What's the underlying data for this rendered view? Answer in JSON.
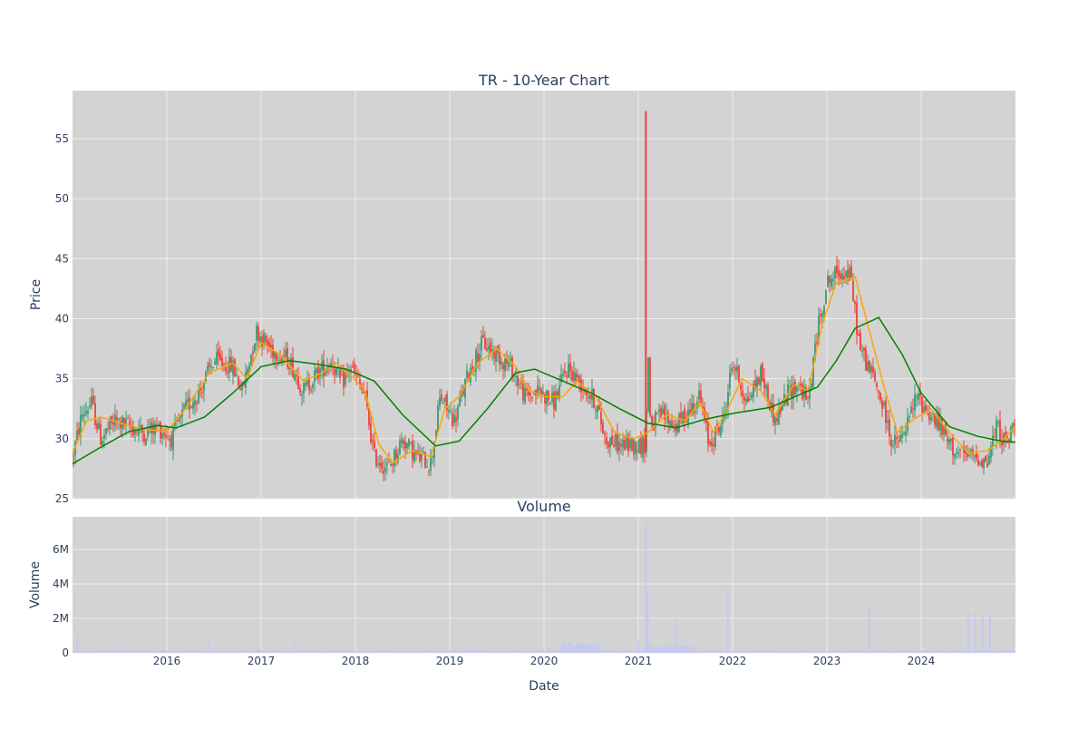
{
  "colors": {
    "panel_bg": "#d3d3d3",
    "grid": "#eeeeee",
    "text": "#2a3f5f",
    "up": "#3d9970",
    "down": "#ef4136",
    "ma_short": "#ffa500",
    "ma_long": "#008000",
    "volume": "#c5c8f0"
  },
  "chart_data": [
    {
      "type": "candlestick",
      "title": "TR - 10-Year Chart",
      "ylabel": "Price",
      "ylim": [
        25,
        59
      ],
      "y_ticks": [
        25,
        30,
        35,
        40,
        45,
        50,
        55
      ],
      "xlim": [
        2015.0,
        2025.0
      ],
      "x_ticks": [
        "2016",
        "2017",
        "2018",
        "2019",
        "2020",
        "2021",
        "2022",
        "2023",
        "2024"
      ],
      "grid": true,
      "legend": "none",
      "price_path": [
        [
          2015.0,
          28.5
        ],
        [
          2015.1,
          32.0
        ],
        [
          2015.2,
          33.0
        ],
        [
          2015.3,
          30.0
        ],
        [
          2015.45,
          31.5
        ],
        [
          2015.6,
          31.0
        ],
        [
          2015.75,
          30.5
        ],
        [
          2015.9,
          31.0
        ],
        [
          2016.05,
          30.0
        ],
        [
          2016.2,
          32.5
        ],
        [
          2016.35,
          34.0
        ],
        [
          2016.5,
          36.5
        ],
        [
          2016.7,
          36.0
        ],
        [
          2016.8,
          34.0
        ],
        [
          2016.95,
          39.0
        ],
        [
          2017.1,
          37.5
        ],
        [
          2017.3,
          36.5
        ],
        [
          2017.45,
          34.0
        ],
        [
          2017.6,
          35.5
        ],
        [
          2017.75,
          36.5
        ],
        [
          2017.85,
          34.5
        ],
        [
          2017.95,
          36.0
        ],
        [
          2018.1,
          33.5
        ],
        [
          2018.2,
          28.5
        ],
        [
          2018.35,
          27.5
        ],
        [
          2018.5,
          30.0
        ],
        [
          2018.65,
          28.5
        ],
        [
          2018.8,
          28.0
        ],
        [
          2018.9,
          33.5
        ],
        [
          2019.05,
          31.5
        ],
        [
          2019.2,
          35.5
        ],
        [
          2019.35,
          38.0
        ],
        [
          2019.5,
          37.0
        ],
        [
          2019.65,
          36.0
        ],
        [
          2019.8,
          33.5
        ],
        [
          2019.95,
          34.0
        ],
        [
          2020.1,
          33.0
        ],
        [
          2020.25,
          36.0
        ],
        [
          2020.4,
          34.5
        ],
        [
          2020.55,
          33.0
        ],
        [
          2020.65,
          30.0
        ],
        [
          2020.8,
          29.5
        ],
        [
          2020.95,
          29.5
        ],
        [
          2021.08,
          29.5
        ],
        [
          2021.1,
          38.0
        ],
        [
          2021.13,
          31.0
        ],
        [
          2021.25,
          32.0
        ],
        [
          2021.4,
          31.0
        ],
        [
          2021.55,
          32.5
        ],
        [
          2021.65,
          33.5
        ],
        [
          2021.75,
          29.5
        ],
        [
          2021.9,
          31.5
        ],
        [
          2022.0,
          36.5
        ],
        [
          2022.15,
          33.0
        ],
        [
          2022.3,
          35.5
        ],
        [
          2022.45,
          31.5
        ],
        [
          2022.6,
          34.0
        ],
        [
          2022.7,
          34.5
        ],
        [
          2022.8,
          33.0
        ],
        [
          2022.9,
          39.0
        ],
        [
          2023.0,
          43.0
        ],
        [
          2023.15,
          44.0
        ],
        [
          2023.25,
          43.5
        ],
        [
          2023.35,
          37.5
        ],
        [
          2023.5,
          35.0
        ],
        [
          2023.6,
          32.5
        ],
        [
          2023.7,
          29.5
        ],
        [
          2023.8,
          30.0
        ],
        [
          2023.95,
          33.5
        ],
        [
          2024.05,
          32.5
        ],
        [
          2024.2,
          31.0
        ],
        [
          2024.3,
          29.5
        ],
        [
          2024.45,
          28.5
        ],
        [
          2024.6,
          28.5
        ],
        [
          2024.7,
          28.0
        ],
        [
          2024.8,
          31.0
        ],
        [
          2024.9,
          29.5
        ],
        [
          2025.0,
          31.5
        ]
      ],
      "spike": {
        "x": 2021.08,
        "low": 29.0,
        "high": 57.3
      },
      "ma_short": [
        [
          2015.0,
          28.8
        ],
        [
          2015.15,
          31.5
        ],
        [
          2015.3,
          31.8
        ],
        [
          2015.5,
          31.3
        ],
        [
          2015.75,
          30.8
        ],
        [
          2016.0,
          30.6
        ],
        [
          2016.2,
          32.5
        ],
        [
          2016.45,
          35.5
        ],
        [
          2016.7,
          36.3
        ],
        [
          2016.85,
          35.0
        ],
        [
          2017.0,
          38.0
        ],
        [
          2017.2,
          37.0
        ],
        [
          2017.45,
          34.8
        ],
        [
          2017.65,
          35.5
        ],
        [
          2017.8,
          36.3
        ],
        [
          2017.95,
          35.3
        ],
        [
          2018.1,
          34.0
        ],
        [
          2018.25,
          29.5
        ],
        [
          2018.4,
          28.0
        ],
        [
          2018.6,
          29.0
        ],
        [
          2018.8,
          28.5
        ],
        [
          2018.95,
          32.5
        ],
        [
          2019.1,
          33.5
        ],
        [
          2019.3,
          36.3
        ],
        [
          2019.5,
          37.5
        ],
        [
          2019.7,
          36.0
        ],
        [
          2019.85,
          34.0
        ],
        [
          2020.0,
          33.5
        ],
        [
          2020.2,
          33.5
        ],
        [
          2020.35,
          34.8
        ],
        [
          2020.55,
          33.5
        ],
        [
          2020.75,
          30.5
        ],
        [
          2020.95,
          30.0
        ],
        [
          2021.1,
          30.5
        ],
        [
          2021.3,
          32.0
        ],
        [
          2021.5,
          31.5
        ],
        [
          2021.65,
          33.0
        ],
        [
          2021.8,
          30.5
        ],
        [
          2021.95,
          32.5
        ],
        [
          2022.1,
          35.0
        ],
        [
          2022.3,
          34.0
        ],
        [
          2022.45,
          32.0
        ],
        [
          2022.65,
          34.5
        ],
        [
          2022.8,
          34.0
        ],
        [
          2022.95,
          39.5
        ],
        [
          2023.1,
          43.0
        ],
        [
          2023.3,
          43.5
        ],
        [
          2023.45,
          39.0
        ],
        [
          2023.6,
          34.5
        ],
        [
          2023.75,
          30.5
        ],
        [
          2023.9,
          31.5
        ],
        [
          2024.1,
          32.5
        ],
        [
          2024.3,
          30.5
        ],
        [
          2024.5,
          28.8
        ],
        [
          2024.7,
          29.0
        ],
        [
          2024.85,
          29.8
        ],
        [
          2025.0,
          31.0
        ]
      ],
      "ma_long": [
        [
          2015.0,
          27.9
        ],
        [
          2015.3,
          29.3
        ],
        [
          2015.6,
          30.6
        ],
        [
          2015.9,
          31.1
        ],
        [
          2016.1,
          30.9
        ],
        [
          2016.4,
          31.8
        ],
        [
          2016.7,
          33.8
        ],
        [
          2017.0,
          36.0
        ],
        [
          2017.3,
          36.5
        ],
        [
          2017.6,
          36.2
        ],
        [
          2017.9,
          35.8
        ],
        [
          2018.2,
          34.8
        ],
        [
          2018.5,
          32.0
        ],
        [
          2018.85,
          29.4
        ],
        [
          2019.1,
          29.8
        ],
        [
          2019.4,
          32.5
        ],
        [
          2019.7,
          35.5
        ],
        [
          2019.9,
          35.8
        ],
        [
          2020.2,
          34.8
        ],
        [
          2020.5,
          33.8
        ],
        [
          2020.8,
          32.5
        ],
        [
          2021.1,
          31.3
        ],
        [
          2021.4,
          30.9
        ],
        [
          2021.7,
          31.6
        ],
        [
          2022.0,
          32.1
        ],
        [
          2022.4,
          32.6
        ],
        [
          2022.75,
          33.8
        ],
        [
          2022.9,
          34.3
        ],
        [
          2023.1,
          36.5
        ],
        [
          2023.3,
          39.2
        ],
        [
          2023.55,
          40.1
        ],
        [
          2023.8,
          37.0
        ],
        [
          2024.0,
          33.8
        ],
        [
          2024.3,
          31.0
        ],
        [
          2024.6,
          30.2
        ],
        [
          2024.85,
          29.8
        ],
        [
          2025.0,
          29.7
        ]
      ]
    },
    {
      "type": "bar",
      "title": "Volume",
      "ylabel": "Volume",
      "xlabel": "Date",
      "ylim": [
        0,
        7900000
      ],
      "y_ticks": [
        0,
        2000000,
        4000000,
        6000000
      ],
      "y_tick_labels": [
        "0",
        "2M",
        "4M",
        "6M"
      ],
      "xlim": [
        2015.0,
        2025.0
      ],
      "x_ticks": [
        "2016",
        "2017",
        "2018",
        "2019",
        "2020",
        "2021",
        "2022",
        "2023",
        "2024"
      ],
      "spikes": [
        [
          2015.05,
          800000
        ],
        [
          2016.45,
          600000
        ],
        [
          2017.35,
          600000
        ],
        [
          2020.2,
          700000
        ],
        [
          2021.0,
          700000
        ],
        [
          2021.08,
          7500000
        ],
        [
          2021.1,
          3500000
        ],
        [
          2021.4,
          2000000
        ],
        [
          2021.95,
          3700000
        ],
        [
          2023.45,
          2600000
        ],
        [
          2024.5,
          2300000
        ],
        [
          2024.57,
          2300000
        ],
        [
          2024.65,
          2300000
        ],
        [
          2024.73,
          2300000
        ]
      ]
    }
  ]
}
